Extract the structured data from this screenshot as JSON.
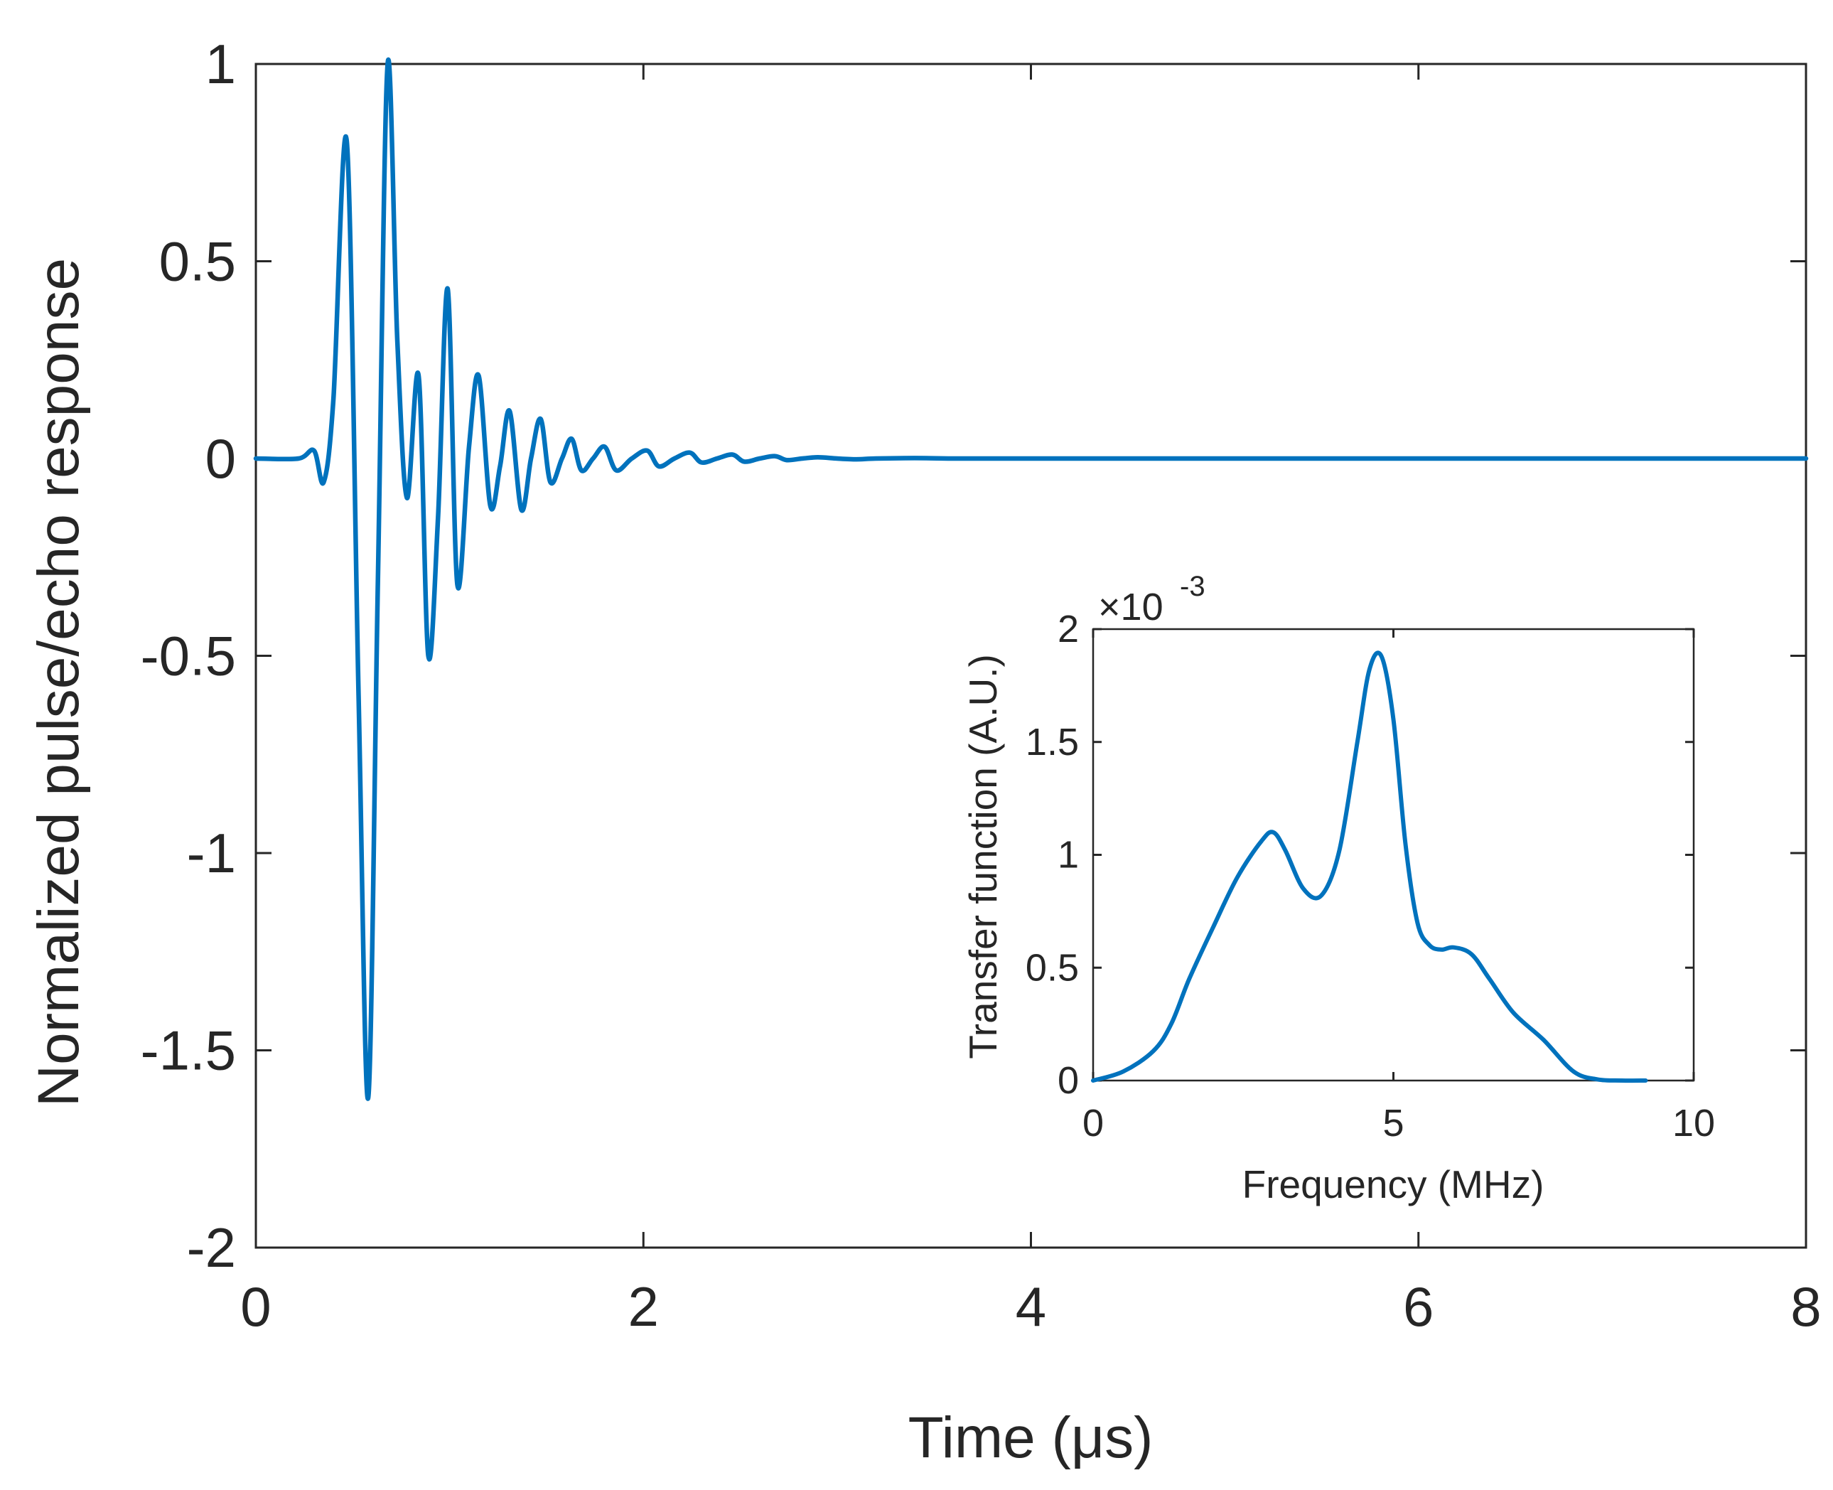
{
  "chart_data": [
    {
      "type": "line",
      "name": "main",
      "title": "",
      "xlabel": "Time (μs)",
      "ylabel": "Normalized pulse/echo response",
      "xlim": [
        0,
        8
      ],
      "ylim": [
        -2,
        1
      ],
      "xticks": [
        0,
        2,
        4,
        6,
        8
      ],
      "xtick_labels": [
        "0",
        "2",
        "4",
        "6",
        "8"
      ],
      "yticks": [
        1,
        0.5,
        0,
        -0.5,
        -1,
        -1.5,
        -2
      ],
      "ytick_labels": [
        "1",
        "0.5",
        "0",
        "-0.5",
        "-1",
        "-1.5",
        "-2"
      ],
      "grid": false,
      "series": [
        {
          "name": "pulse/echo response",
          "color": "#0072BD",
          "x": [
            0,
            0.22,
            0.3,
            0.35,
            0.4,
            0.47,
            0.53,
            0.58,
            0.63,
            0.68,
            0.73,
            0.78,
            0.84,
            0.89,
            0.94,
            0.99,
            1.04,
            1.1,
            1.15,
            1.21,
            1.26,
            1.31,
            1.37,
            1.42,
            1.47,
            1.52,
            1.58,
            1.63,
            1.68,
            1.74,
            1.8,
            1.86,
            1.94,
            2.02,
            2.08,
            2.16,
            2.24,
            2.3,
            2.38,
            2.46,
            2.52,
            2.6,
            2.68,
            2.74,
            2.82,
            2.9,
            3.0,
            3.1,
            3.2,
            3.4,
            3.6,
            4.0,
            5.0,
            6.0,
            7.0,
            8.0
          ],
          "y": [
            0,
            0.0,
            0.02,
            -0.06,
            0.15,
            0.8,
            -0.6,
            -1.62,
            -0.3,
            1.0,
            0.3,
            -0.1,
            0.21,
            -0.5,
            -0.15,
            0.43,
            -0.32,
            0.03,
            0.21,
            -0.12,
            -0.02,
            0.12,
            -0.13,
            0.0,
            0.1,
            -0.06,
            0.0,
            0.05,
            -0.03,
            0.0,
            0.03,
            -0.03,
            0.0,
            0.02,
            -0.02,
            0.0,
            0.015,
            -0.01,
            0.0,
            0.01,
            -0.008,
            0.0,
            0.006,
            -0.004,
            0.0,
            0.003,
            0.0,
            -0.002,
            0.0,
            0.001,
            0.0,
            0.0,
            0.0,
            0.0,
            0.0,
            0.0
          ]
        }
      ]
    },
    {
      "type": "line",
      "name": "inset",
      "title": "",
      "xlabel": "Frequency (MHz)",
      "ylabel": "Transfer function (A.U.)",
      "y_exponent_label": "×10",
      "y_exponent_power": "-3",
      "xlim": [
        0,
        10
      ],
      "ylim": [
        0,
        2
      ],
      "xticks": [
        0,
        5,
        10
      ],
      "xtick_labels": [
        "0",
        "5",
        "10"
      ],
      "yticks": [
        0,
        0.5,
        1,
        1.5,
        2
      ],
      "ytick_labels": [
        "0",
        "0.5",
        "1",
        "1.5",
        "2"
      ],
      "grid": false,
      "series": [
        {
          "name": "transfer function",
          "color": "#0072BD",
          "x": [
            0,
            0.5,
            1.0,
            1.3,
            1.6,
            2.0,
            2.4,
            2.8,
            3.0,
            3.2,
            3.5,
            3.8,
            4.1,
            4.4,
            4.6,
            4.8,
            5.0,
            5.2,
            5.4,
            5.6,
            5.8,
            6.0,
            6.3,
            6.6,
            7.0,
            7.5,
            8.0,
            8.4,
            8.8,
            9.2
          ],
          "y": [
            0,
            0.04,
            0.13,
            0.25,
            0.45,
            0.68,
            0.9,
            1.06,
            1.1,
            1.02,
            0.85,
            0.82,
            1.02,
            1.5,
            1.82,
            1.88,
            1.6,
            1.05,
            0.7,
            0.6,
            0.58,
            0.59,
            0.56,
            0.45,
            0.3,
            0.18,
            0.04,
            0.005,
            0.0,
            0.0
          ]
        }
      ]
    }
  ]
}
